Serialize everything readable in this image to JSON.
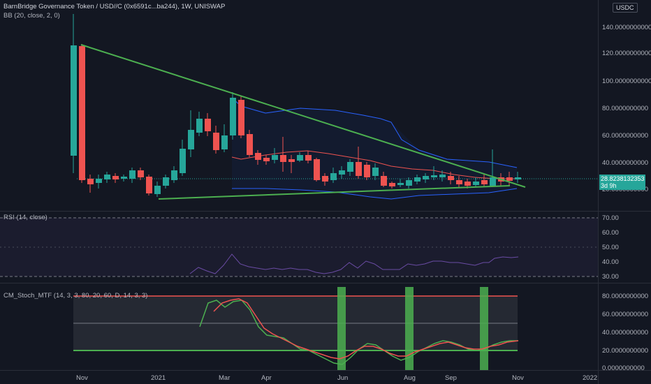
{
  "header": {
    "title": "BarnBridge Governance Token / USD//C (0x6591c...ba244), 1W, UNISWAP",
    "indicator": "BB (20, close, 2, 0)",
    "currency": "USDC"
  },
  "price_axis": [
    "140.0000000000",
    "120.0000000000",
    "100.0000000000",
    "80.0000000000",
    "60.0000000000",
    "40.0000000000",
    "20.0000000000"
  ],
  "last_price": {
    "value": "28.8238132353",
    "countdown": "3d 9h"
  },
  "rsi": {
    "title": "RSI (14, close)",
    "axis": [
      "70.00",
      "60.00",
      "50.00",
      "40.00",
      "30.00"
    ]
  },
  "stoch": {
    "title": "CM_Stoch_MTF (14, 3, 3, 80, 20, 60, D, 14, 3, 3)",
    "axis": [
      "80.0000000000",
      "60.0000000000",
      "40.0000000000",
      "20.0000000000",
      "0.0000000000"
    ]
  },
  "time_axis": [
    "Nov",
    "2021",
    "Mar",
    "Apr",
    "Jun",
    "Aug",
    "Sep",
    "Nov",
    "2022"
  ],
  "colors": {
    "up": "#26a69a",
    "down": "#ef5350",
    "trend": "#4caf50",
    "band": "#2962ff",
    "basis": "#ff6d00"
  }
}
